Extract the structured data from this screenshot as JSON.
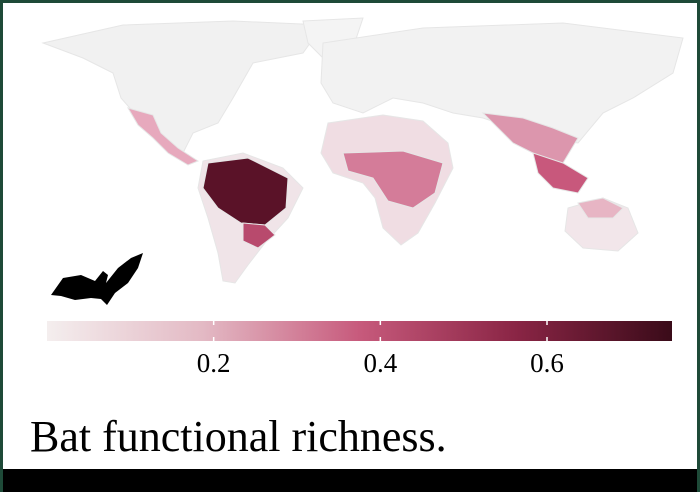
{
  "colorbar": {
    "range": [
      0,
      0.75
    ],
    "ticks": [
      0.2,
      0.4,
      0.6
    ],
    "colors": [
      "#f4eeee",
      "#e3b9c4",
      "#c75a7c",
      "#8a2545",
      "#3a0b19"
    ]
  },
  "caption": "Bat functional richness."
}
